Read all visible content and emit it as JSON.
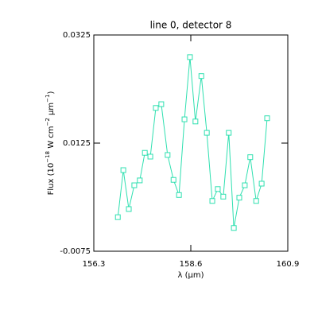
{
  "chart_data": {
    "type": "line",
    "title": "line 0, detector 8",
    "xlabel": "λ (μm)",
    "ylabel": [
      {
        "text": "Flux (10"
      },
      {
        "text": "−18",
        "sup": true
      },
      {
        "text": " W cm"
      },
      {
        "text": "−2",
        "sup": true
      },
      {
        "text": " μm"
      },
      {
        "text": "−1",
        "sup": true
      },
      {
        "text": ")"
      }
    ],
    "x": [
      156.87,
      157.0,
      157.13,
      157.26,
      157.39,
      157.51,
      157.64,
      157.77,
      157.9,
      158.05,
      158.19,
      158.32,
      158.45,
      158.58,
      158.71,
      158.85,
      158.98,
      159.11,
      159.24,
      159.37,
      159.5,
      159.62,
      159.75,
      159.88,
      160.01,
      160.15,
      160.28,
      160.41
    ],
    "series": [
      {
        "color": "#2fe0b0",
        "values": [
          -0.0012,
          0.0075,
          0.0003,
          0.0047,
          0.0056,
          0.0107,
          0.01,
          0.019,
          0.0197,
          0.0103,
          0.0057,
          0.0029,
          0.0169,
          0.0284,
          0.0165,
          0.0249,
          0.0144,
          0.0018,
          0.004,
          0.0026,
          0.0144,
          -0.0032,
          0.0024,
          0.0047,
          0.0099,
          0.0018,
          0.005,
          0.0171
        ]
      }
    ],
    "xlim": [
      156.3,
      160.9
    ],
    "xticks": [
      156.3,
      158.6,
      160.9
    ],
    "ylim": [
      -0.0075,
      0.0325
    ],
    "yticks": [
      -0.0075,
      0.0125,
      0.0325
    ],
    "marker": "square"
  }
}
